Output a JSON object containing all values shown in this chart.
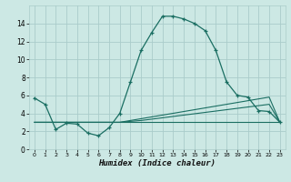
{
  "xlabel": "Humidex (Indice chaleur)",
  "x_values": [
    0,
    1,
    2,
    3,
    4,
    5,
    6,
    7,
    8,
    9,
    10,
    11,
    12,
    13,
    14,
    15,
    16,
    17,
    18,
    19,
    20,
    21,
    22,
    23
  ],
  "main_line": [
    5.7,
    5.0,
    2.2,
    2.9,
    2.8,
    1.8,
    1.5,
    2.4,
    4.0,
    7.5,
    11.0,
    13.0,
    14.8,
    14.8,
    14.5,
    14.0,
    13.2,
    11.0,
    7.5,
    6.0,
    5.8,
    4.3,
    4.2,
    3.0
  ],
  "line_flat": [
    3.0,
    3.0,
    3.0,
    3.0,
    3.0,
    3.0,
    3.0,
    3.0,
    3.0,
    3.0,
    3.0,
    3.0,
    3.0,
    3.0,
    3.0,
    3.0,
    3.0,
    3.0,
    3.0,
    3.0,
    3.0,
    3.0,
    3.0,
    3.0
  ],
  "line_slope1": [
    3.0,
    3.0,
    3.0,
    3.0,
    3.0,
    3.0,
    3.0,
    3.0,
    3.0,
    3.2,
    3.4,
    3.6,
    3.8,
    4.0,
    4.2,
    4.4,
    4.6,
    4.8,
    5.0,
    5.2,
    5.4,
    5.6,
    5.8,
    3.0
  ],
  "line_slope2": [
    3.0,
    3.0,
    3.0,
    3.0,
    3.0,
    3.0,
    3.0,
    3.0,
    3.0,
    3.1,
    3.2,
    3.35,
    3.5,
    3.65,
    3.8,
    3.95,
    4.1,
    4.25,
    4.4,
    4.55,
    4.7,
    4.85,
    5.0,
    3.0
  ],
  "bg_color": "#cce8e4",
  "grid_color": "#aaccca",
  "line_color": "#1a6e62",
  "ylim": [
    0,
    16
  ],
  "xlim": [
    -0.5,
    23.5
  ],
  "yticks": [
    0,
    2,
    4,
    6,
    8,
    10,
    12,
    14
  ],
  "xticks": [
    0,
    1,
    2,
    3,
    4,
    5,
    6,
    7,
    8,
    9,
    10,
    11,
    12,
    13,
    14,
    15,
    16,
    17,
    18,
    19,
    20,
    21,
    22,
    23
  ]
}
